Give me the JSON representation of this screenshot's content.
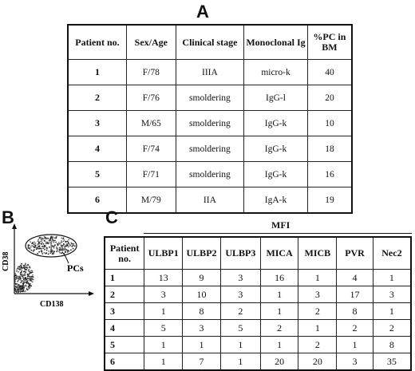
{
  "panels": {
    "a": "A",
    "b": "B",
    "c": "C"
  },
  "table_a": {
    "headers": [
      "Patient no.",
      "Sex/Age",
      "Clinical stage",
      "Monoclonal Ig",
      "%PC in BM"
    ],
    "rows": [
      [
        "1",
        "F/78",
        "IIIA",
        "micro-k",
        "40"
      ],
      [
        "2",
        "F/76",
        "smoldering",
        "IgG-l",
        "20"
      ],
      [
        "3",
        "M/65",
        "smoldering",
        "IgG-k",
        "10"
      ],
      [
        "4",
        "F/74",
        "smoldering",
        "IgG-k",
        "18"
      ],
      [
        "5",
        "F/71",
        "smoldering",
        "IgG-k",
        "16"
      ],
      [
        "6",
        "M/79",
        "IIA",
        "IgA-k",
        "19"
      ]
    ]
  },
  "flow_plot": {
    "x_label": "CD138",
    "y_label": "CD38",
    "gate_label": "PCs"
  },
  "table_c": {
    "group_header": "MFI",
    "headers": [
      "Patient no.",
      "ULBP1",
      "ULBP2",
      "ULBP3",
      "MICA",
      "MICB",
      "PVR",
      "Nec2"
    ],
    "rows": [
      [
        "1",
        "13",
        "9",
        "3",
        "16",
        "1",
        "4",
        "1"
      ],
      [
        "2",
        "3",
        "10",
        "3",
        "1",
        "3",
        "17",
        "3"
      ],
      [
        "3",
        "1",
        "8",
        "2",
        "1",
        "2",
        "8",
        "1"
      ],
      [
        "4",
        "5",
        "3",
        "5",
        "2",
        "1",
        "2",
        "2"
      ],
      [
        "5",
        "1",
        "1",
        "1",
        "1",
        "2",
        "1",
        "8"
      ],
      [
        "6",
        "1",
        "7",
        "1",
        "20",
        "20",
        "3",
        "35"
      ]
    ]
  }
}
